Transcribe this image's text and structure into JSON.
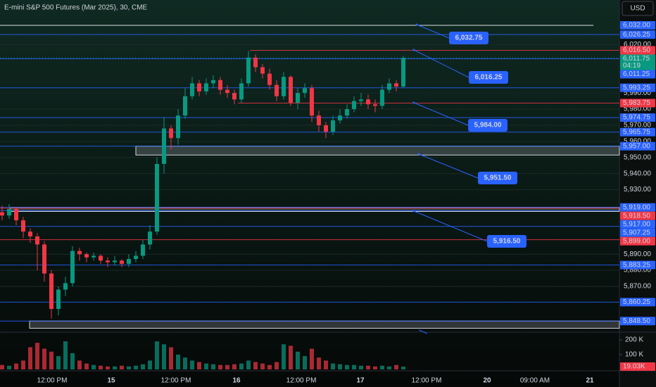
{
  "header": {
    "title": "E-mini S&P 500 Futures (Mar 2025), 30, CME",
    "currency": "USD"
  },
  "chart_data": {
    "type": "candlestick",
    "ylim": [
      5842.5,
      6047.7
    ],
    "yticks": [
      {
        "value": 6020,
        "label": "6,020.00"
      },
      {
        "value": 5990,
        "label": "5,990.00"
      },
      {
        "value": 5980,
        "label": "5,980.00"
      },
      {
        "value": 5970,
        "label": "5,970.00"
      },
      {
        "value": 5960,
        "label": "5,960.00"
      },
      {
        "value": 5950,
        "label": "5,950.00"
      },
      {
        "value": 5940,
        "label": "5,940.00"
      },
      {
        "value": 5930,
        "label": "5,930.00"
      },
      {
        "value": 5890,
        "label": "5,890.00"
      },
      {
        "value": 5880,
        "label": "5,880.00"
      },
      {
        "value": 5870,
        "label": "5,870.00"
      }
    ],
    "categories": [
      "12:00 PM",
      "15",
      "12:00 PM",
      "16",
      "12:00 PM",
      "17",
      "12:00 PM",
      "20",
      "09:00 AM",
      "21"
    ],
    "candles": {
      "open": [
        5916,
        5914,
        5918,
        5911,
        5904,
        5901,
        5896,
        5878,
        5856,
        5868,
        5872,
        5892,
        5890,
        5888,
        5889,
        5886,
        5885,
        5886,
        5884,
        5887,
        5889,
        5896,
        5904,
        5946,
        5968,
        5962,
        5976,
        5988,
        5996,
        5991,
        5996,
        5998,
        5992,
        5990,
        5986,
        5996,
        6012,
        6006,
        6002,
        5995,
        5988,
        6000,
        5984,
        5990,
        5993,
        5976,
        5970,
        5966,
        5973,
        5976,
        5980,
        5985,
        5986,
        5983,
        5982,
        5992,
        5996,
        5994
      ],
      "high": [
        5920,
        5921,
        5919,
        5913,
        5906,
        5903,
        5898,
        5880,
        5870,
        5876,
        5895,
        5894,
        5891,
        5891,
        5890,
        5888,
        5889,
        5887,
        5890,
        5892,
        5899,
        5908,
        5950,
        5975,
        5970,
        5980,
        5993,
        6000,
        5998,
        5999,
        6001,
        6000,
        5995,
        5992,
        5999,
        6016,
        6014,
        6008,
        6005,
        5998,
        6003,
        6001,
        5993,
        5996,
        5995,
        5979,
        5972,
        5976,
        5980,
        5983,
        5988,
        5990,
        5989,
        5986,
        5995,
        5999,
        5998,
        6013
      ],
      "low": [
        5911,
        5912,
        5908,
        5900,
        5897,
        5880,
        5873,
        5850,
        5852,
        5864,
        5870,
        5886,
        5885,
        5886,
        5884,
        5882,
        5883,
        5882,
        5882,
        5885,
        5887,
        5893,
        5902,
        5940,
        5955,
        5958,
        5974,
        5986,
        5988,
        5989,
        5993,
        5989,
        5987,
        5983,
        5984,
        5994,
        6003,
        5999,
        5992,
        5985,
        5986,
        5982,
        5980,
        5987,
        5972,
        5966,
        5962,
        5964,
        5971,
        5974,
        5978,
        5982,
        5980,
        5978,
        5980,
        5990,
        5991,
        5993
      ],
      "close": [
        5914,
        5918,
        5911,
        5904,
        5901,
        5896,
        5878,
        5856,
        5868,
        5872,
        5892,
        5890,
        5888,
        5889,
        5886,
        5885,
        5886,
        5884,
        5887,
        5889,
        5896,
        5904,
        5946,
        5968,
        5962,
        5976,
        5988,
        5996,
        5991,
        5996,
        5998,
        5992,
        5990,
        5986,
        5996,
        6012,
        6006,
        6002,
        5995,
        5988,
        6000,
        5984,
        5990,
        5993,
        5976,
        5970,
        5966,
        5973,
        5976,
        5980,
        5985,
        5986,
        5983,
        5982,
        5992,
        5996,
        5994,
        6011.75
      ],
      "up_color": "#089981",
      "down_color": "#f23645"
    },
    "last_price": {
      "value": 6011.75,
      "label": "6,011.75",
      "countdown": "04:19",
      "color": "#089981"
    },
    "levels": [
      {
        "value": 6032,
        "label": "6,032.00",
        "color": "#2962ff",
        "line_color": "#ffffff"
      },
      {
        "value": 6026.25,
        "label": "6,026.25",
        "color": "#2962ff"
      },
      {
        "value": 6016.5,
        "label": "6,016.50",
        "color": "#f23645"
      },
      {
        "value": 6011.25,
        "label": "6,011.25",
        "color": "#2962ff"
      },
      {
        "value": 5993.25,
        "label": "5,993.25",
        "color": "#2962ff"
      },
      {
        "value": 5983.75,
        "label": "5,983.75",
        "color": "#f23645"
      },
      {
        "value": 5974.75,
        "label": "5,974.75",
        "color": "#2962ff"
      },
      {
        "value": 5965.75,
        "label": "5,965.75",
        "color": "#2962ff"
      },
      {
        "value": 5957,
        "label": "5,957.00",
        "color": "#2962ff"
      },
      {
        "value": 5919,
        "label": "5,919.00",
        "color": "#2962ff"
      },
      {
        "value": 5918.5,
        "label": "5,918.50",
        "color": "#f23645"
      },
      {
        "value": 5917,
        "label": "5,917.00",
        "color": "#2962ff"
      },
      {
        "value": 5907.25,
        "label": "5,907.25",
        "color": "#2962ff"
      },
      {
        "value": 5899,
        "label": "5,899.00",
        "color": "#f23645"
      },
      {
        "value": 5883.25,
        "label": "5,883.25",
        "color": "#2962ff"
      },
      {
        "value": 5860.25,
        "label": "5,860.25",
        "color": "#2962ff"
      },
      {
        "value": 5848.5,
        "label": "5,848.50",
        "color": "#2962ff"
      }
    ],
    "zones": [
      {
        "top": 5957,
        "bottom": 5951.5
      },
      {
        "top": 5919,
        "bottom": 5916.5
      },
      {
        "top": 5848.5,
        "bottom": 5844
      }
    ],
    "callouts": [
      {
        "value": 6032.75,
        "label": "6,032.75"
      },
      {
        "value": 6016.25,
        "label": "6,016.25"
      },
      {
        "value": 5984,
        "label": "5,984.00"
      },
      {
        "value": 5951.5,
        "label": "5,951.50"
      },
      {
        "value": 5916.5,
        "label": "5,916.50"
      }
    ],
    "volume": {
      "values": [
        30,
        25,
        40,
        60,
        150,
        180,
        140,
        120,
        90,
        190,
        110,
        60,
        40,
        30,
        25,
        20,
        20,
        25,
        20,
        25,
        35,
        60,
        190,
        170,
        150,
        100,
        80,
        60,
        50,
        40,
        35,
        30,
        30,
        35,
        40,
        60,
        50,
        40,
        30,
        50,
        170,
        160,
        120,
        90,
        140,
        80,
        60,
        40,
        35,
        30,
        30,
        25,
        25,
        20,
        25,
        20,
        30,
        19.03
      ],
      "ylim": [
        0,
        238
      ],
      "yticks": [
        {
          "value": 100,
          "label": "100 K"
        },
        {
          "value": 200,
          "label": "200 K"
        }
      ],
      "last_label": "19.03K"
    }
  }
}
